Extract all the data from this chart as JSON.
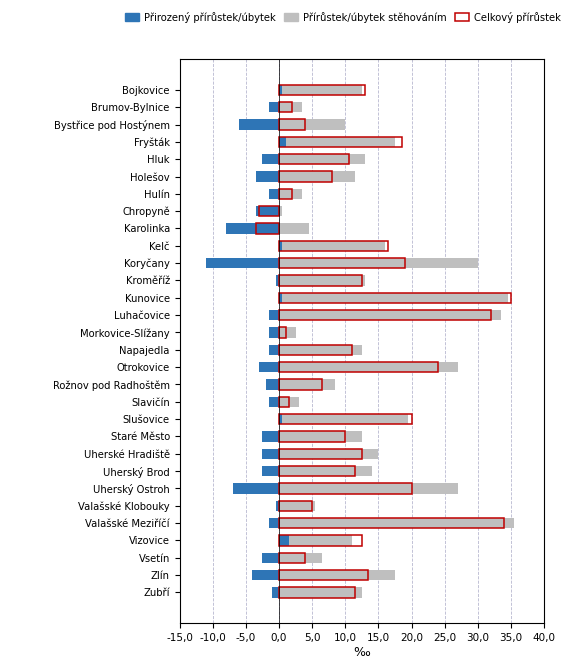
{
  "cities": [
    "Bojkovice",
    "Brumov-Bylnice",
    "Bystřice pod Hostýnem",
    "Fryšták",
    "Hluk",
    "Holešov",
    "Hulín",
    "Chropyně",
    "Karolinka",
    "Kelč",
    "Koryčany",
    "Kroměříž",
    "Kunovice",
    "Luhačovice",
    "Morkovice-Slížany",
    "Napajedla",
    "Otrokovice",
    "Rožnov pod Radhoštěm",
    "Slavičín",
    "Slušovice",
    "Staré Město",
    "Uherské Hradiště",
    "Uherský Brod",
    "Uherský Ostroh",
    "Valašské Klobouky",
    "Valašské Meziříčí",
    "Vizovice",
    "Vsetín",
    "Zlín",
    "Zubří"
  ],
  "prirodzeny": [
    0.5,
    -1.5,
    -6.0,
    1.0,
    -2.5,
    -3.5,
    -1.5,
    -3.5,
    -8.0,
    0.5,
    -11.0,
    -0.5,
    0.5,
    -1.5,
    -1.5,
    -1.5,
    -3.0,
    -2.0,
    -1.5,
    0.5,
    -2.5,
    -2.5,
    -2.5,
    -7.0,
    -0.5,
    -1.5,
    1.5,
    -2.5,
    -4.0,
    -1.0
  ],
  "stehovanim": [
    12.5,
    3.5,
    10.0,
    17.5,
    13.0,
    11.5,
    3.5,
    0.5,
    4.5,
    16.0,
    30.0,
    13.0,
    34.5,
    33.5,
    2.5,
    12.5,
    27.0,
    8.5,
    3.0,
    19.5,
    12.5,
    15.0,
    14.0,
    27.0,
    5.5,
    35.5,
    11.0,
    6.5,
    17.5,
    12.5
  ],
  "celkovy": [
    13.0,
    2.0,
    4.0,
    18.5,
    10.5,
    8.0,
    2.0,
    -3.0,
    -3.5,
    16.5,
    19.0,
    12.5,
    35.0,
    32.0,
    1.0,
    11.0,
    24.0,
    6.5,
    1.5,
    20.0,
    10.0,
    12.5,
    11.5,
    20.0,
    5.0,
    34.0,
    12.5,
    4.0,
    13.5,
    11.5
  ],
  "color_prirodzeny": "#2e75b6",
  "color_stehovanim": "#bfbfbf",
  "color_celkovy_edge": "#c00000",
  "xlim": [
    -15.0,
    40.0
  ],
  "xticks": [
    -15,
    -10,
    -5,
    0,
    5,
    10,
    15,
    20,
    25,
    30,
    35,
    40
  ],
  "xlabel": "‰",
  "legend_prirodzeny": "Přirozený přírůstek/úbytek",
  "legend_stehovanim": "Přírůstek/úbytek stěhováním",
  "legend_celkovy": "Celkový přírůstek/úbytek"
}
